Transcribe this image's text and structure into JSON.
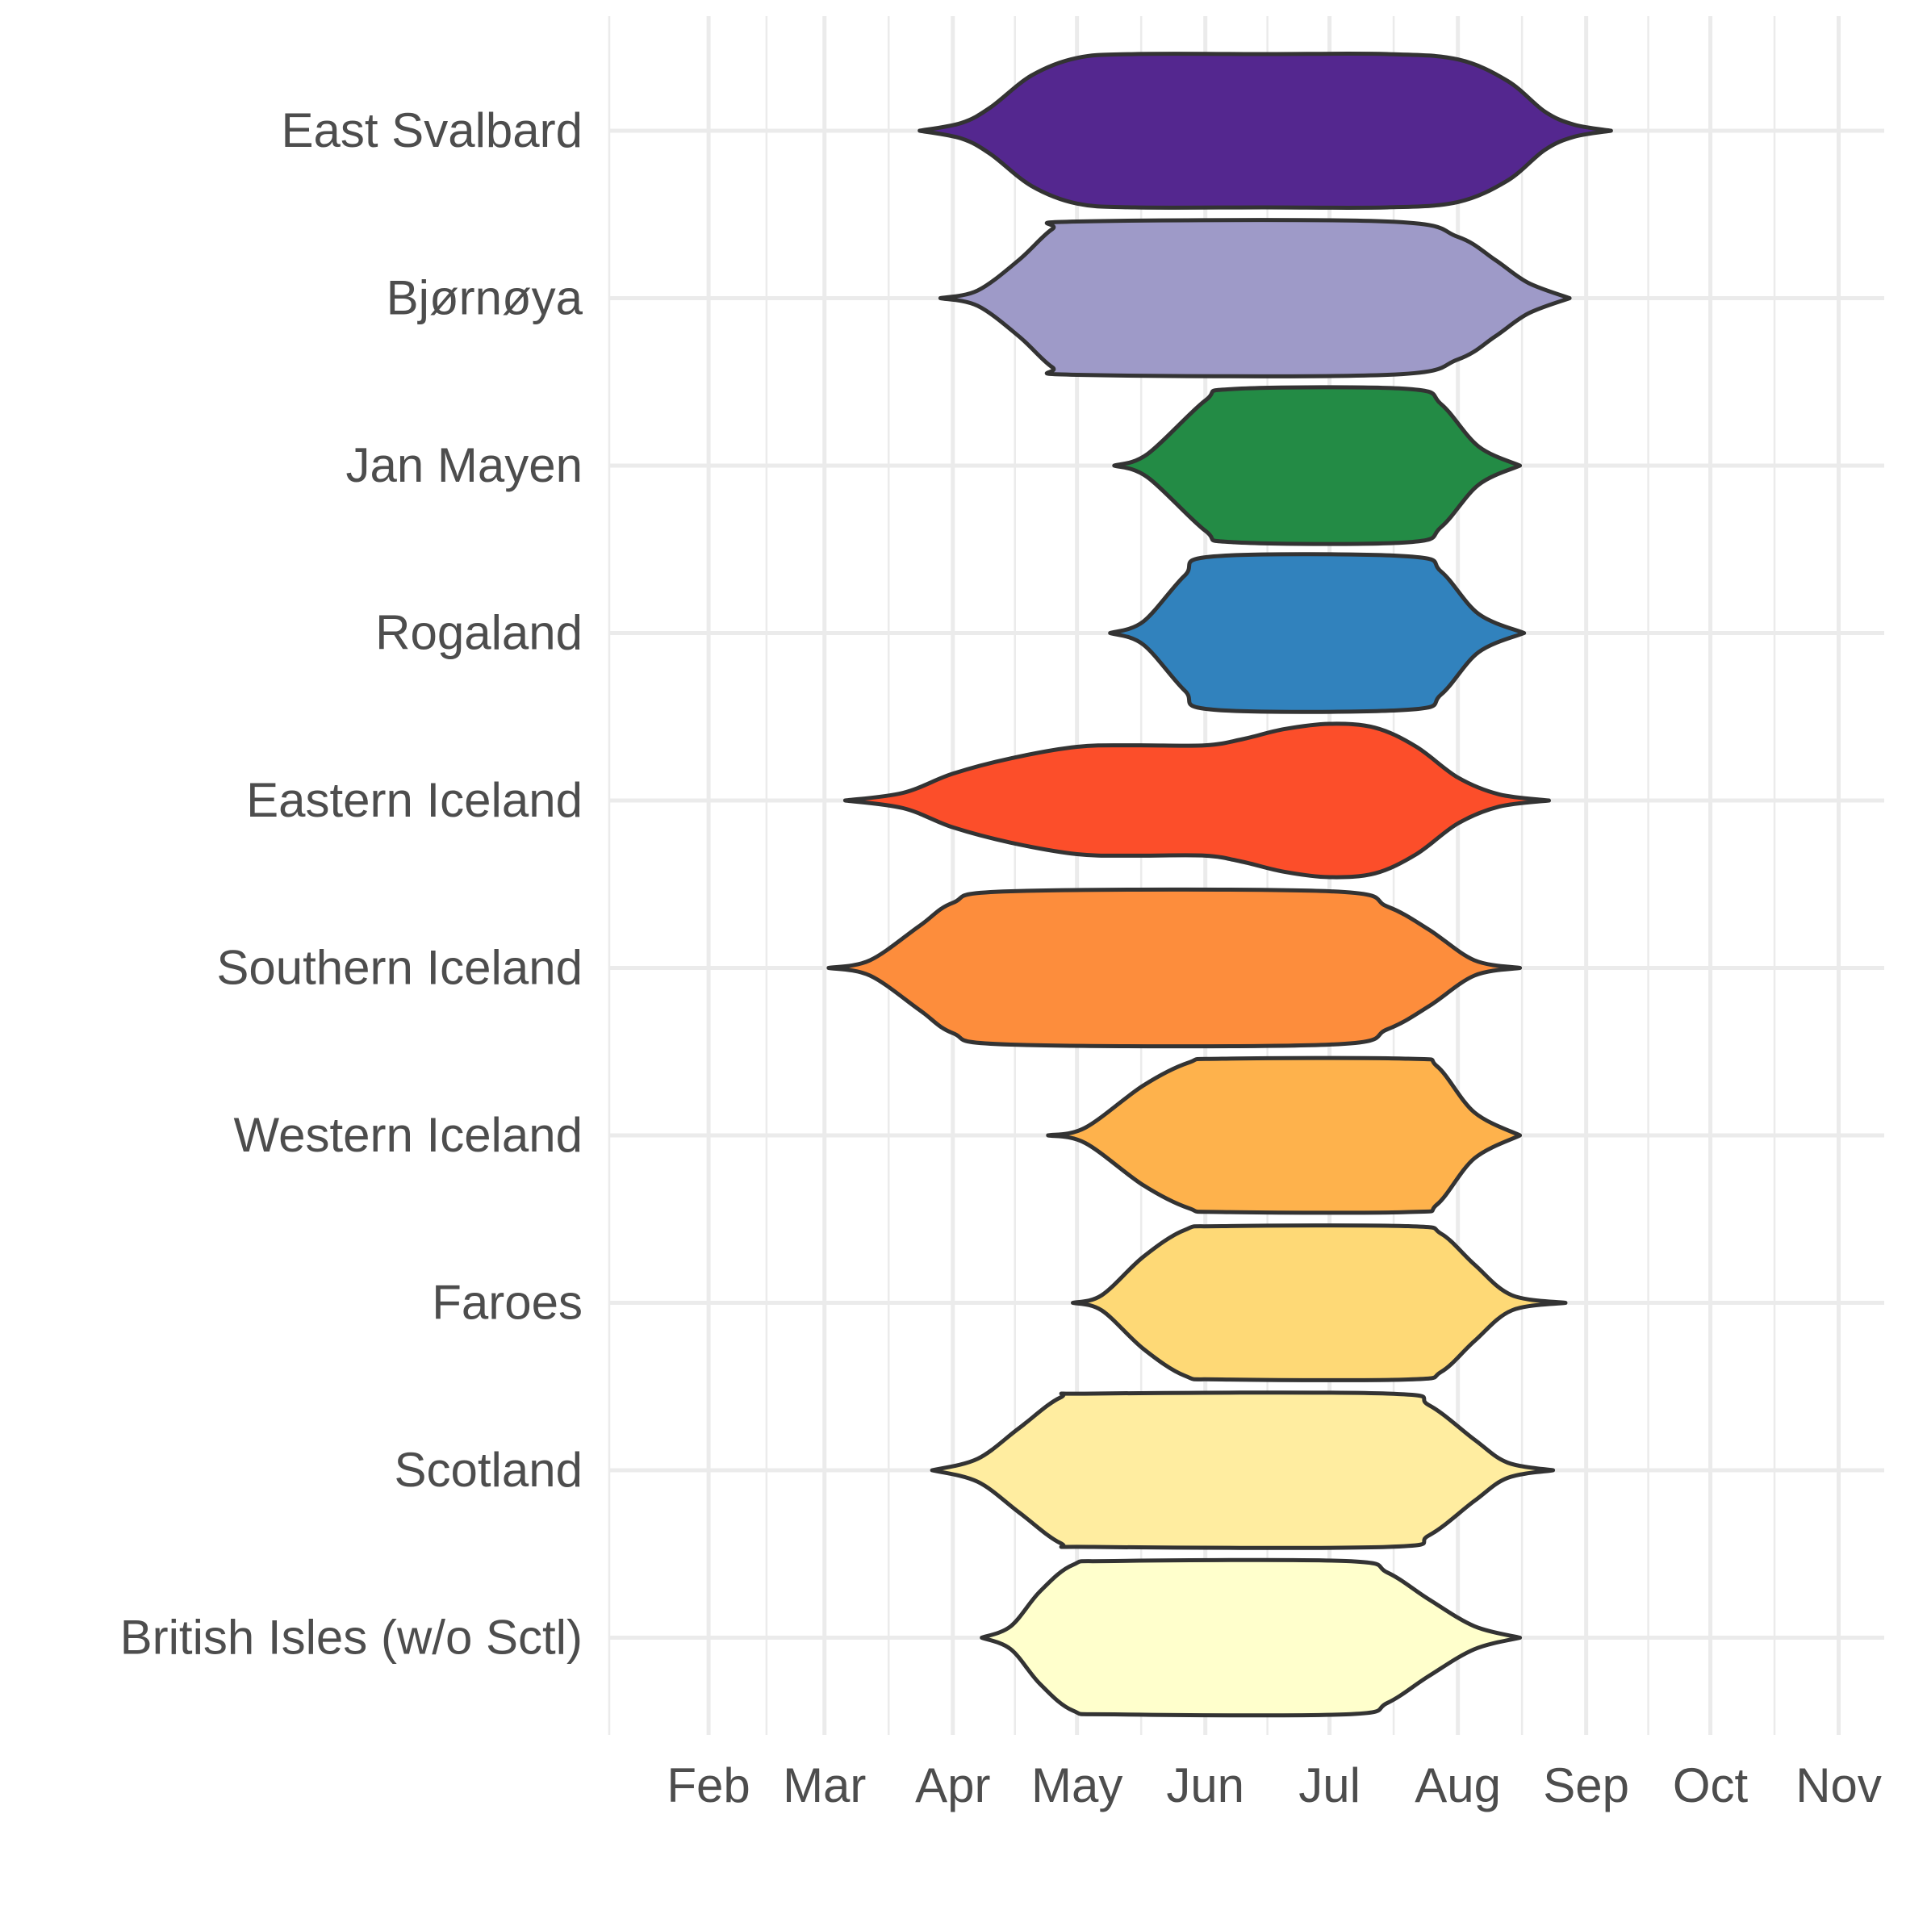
{
  "chart_data": {
    "type": "violin",
    "title": "",
    "xlabel": "",
    "ylabel": "",
    "orientation": "horizontal",
    "x_unit": "month",
    "xlim": [
      "2021-01-08",
      "2021-11-12"
    ],
    "x_ticks": [
      {
        "label": "Feb",
        "date": "2021-02-01"
      },
      {
        "label": "Mar",
        "date": "2021-03-01"
      },
      {
        "label": "Apr",
        "date": "2021-04-01"
      },
      {
        "label": "May",
        "date": "2021-05-01"
      },
      {
        "label": "Jun",
        "date": "2021-06-01"
      },
      {
        "label": "Jul",
        "date": "2021-07-01"
      },
      {
        "label": "Aug",
        "date": "2021-08-01"
      },
      {
        "label": "Sep",
        "date": "2021-09-01"
      },
      {
        "label": "Oct",
        "date": "2021-10-01"
      },
      {
        "label": "Nov",
        "date": "2021-11-01"
      }
    ],
    "grid": true,
    "legend": "none",
    "categories": [
      "East Svalbard",
      "Bjørnøya",
      "Jan Mayen",
      "Rogaland",
      "Eastern Iceland",
      "Southern Iceland",
      "Western Iceland",
      "Faroes",
      "Scotland",
      "British Isles (w/o Sctl)"
    ],
    "series": [
      {
        "category": "East Svalbard",
        "color": "#54278f",
        "density": [
          [
            "2021-03-24",
            0.0
          ],
          [
            "2021-04-03",
            0.1
          ],
          [
            "2021-04-10",
            0.3
          ],
          [
            "2021-04-20",
            0.72
          ],
          [
            "2021-05-01",
            0.95
          ],
          [
            "2021-05-15",
            1.0
          ],
          [
            "2021-06-15",
            1.0
          ],
          [
            "2021-07-15",
            1.0
          ],
          [
            "2021-08-01",
            0.93
          ],
          [
            "2021-08-13",
            0.65
          ],
          [
            "2021-08-22",
            0.25
          ],
          [
            "2021-08-29",
            0.08
          ],
          [
            "2021-09-07",
            0.0
          ]
        ]
      },
      {
        "category": "Bjørnøya",
        "color": "#9e9ac8",
        "density": [
          [
            "2021-03-29",
            0.0
          ],
          [
            "2021-04-07",
            0.1
          ],
          [
            "2021-04-17",
            0.5
          ],
          [
            "2021-04-25",
            0.9
          ],
          [
            "2021-05-01",
            1.0
          ],
          [
            "2021-07-15",
            1.0
          ],
          [
            "2021-08-01",
            0.8
          ],
          [
            "2021-08-10",
            0.5
          ],
          [
            "2021-08-18",
            0.2
          ],
          [
            "2021-08-28",
            0.0
          ]
        ]
      },
      {
        "category": "Jan Mayen",
        "color": "#238b45",
        "density": [
          [
            "2021-05-10",
            0.0
          ],
          [
            "2021-05-18",
            0.15
          ],
          [
            "2021-06-01",
            0.85
          ],
          [
            "2021-06-08",
            1.0
          ],
          [
            "2021-07-20",
            1.0
          ],
          [
            "2021-07-28",
            0.8
          ],
          [
            "2021-08-06",
            0.25
          ],
          [
            "2021-08-16",
            0.0
          ]
        ]
      },
      {
        "category": "Rogaland",
        "color": "#3182bd",
        "density": [
          [
            "2021-05-09",
            0.0
          ],
          [
            "2021-05-17",
            0.15
          ],
          [
            "2021-05-27",
            0.75
          ],
          [
            "2021-06-03",
            1.0
          ],
          [
            "2021-07-20",
            1.0
          ],
          [
            "2021-07-28",
            0.8
          ],
          [
            "2021-08-06",
            0.25
          ],
          [
            "2021-08-17",
            0.0
          ]
        ]
      },
      {
        "category": "Eastern Iceland",
        "color": "#fc4e2a",
        "density": [
          [
            "2021-03-06",
            0.0
          ],
          [
            "2021-03-20",
            0.1
          ],
          [
            "2021-04-01",
            0.35
          ],
          [
            "2021-04-15",
            0.55
          ],
          [
            "2021-05-01",
            0.7
          ],
          [
            "2021-05-15",
            0.72
          ],
          [
            "2021-06-01",
            0.72
          ],
          [
            "2021-06-10",
            0.8
          ],
          [
            "2021-06-20",
            0.93
          ],
          [
            "2021-07-01",
            1.0
          ],
          [
            "2021-07-12",
            0.95
          ],
          [
            "2021-07-22",
            0.7
          ],
          [
            "2021-08-01",
            0.3
          ],
          [
            "2021-08-11",
            0.08
          ],
          [
            "2021-08-23",
            0.0
          ]
        ]
      },
      {
        "category": "Southern Iceland",
        "color": "#fd8d3c",
        "density": [
          [
            "2021-03-02",
            0.0
          ],
          [
            "2021-03-12",
            0.1
          ],
          [
            "2021-03-24",
            0.55
          ],
          [
            "2021-04-01",
            0.85
          ],
          [
            "2021-04-15",
            1.0
          ],
          [
            "2021-07-01",
            1.0
          ],
          [
            "2021-07-15",
            0.8
          ],
          [
            "2021-07-25",
            0.5
          ],
          [
            "2021-08-05",
            0.1
          ],
          [
            "2021-08-16",
            0.0
          ]
        ]
      },
      {
        "category": "Western Iceland",
        "color": "#feb24c",
        "density": [
          [
            "2021-04-24",
            0.0
          ],
          [
            "2021-05-03",
            0.1
          ],
          [
            "2021-05-17",
            0.65
          ],
          [
            "2021-05-28",
            0.95
          ],
          [
            "2021-06-05",
            1.0
          ],
          [
            "2021-07-20",
            1.0
          ],
          [
            "2021-07-27",
            0.9
          ],
          [
            "2021-08-05",
            0.3
          ],
          [
            "2021-08-16",
            0.0
          ]
        ]
      },
      {
        "category": "Faroes",
        "color": "#fed976",
        "density": [
          [
            "2021-04-30",
            0.0
          ],
          [
            "2021-05-07",
            0.1
          ],
          [
            "2021-05-17",
            0.6
          ],
          [
            "2021-05-27",
            0.95
          ],
          [
            "2021-06-05",
            1.0
          ],
          [
            "2021-07-20",
            1.0
          ],
          [
            "2021-07-28",
            0.9
          ],
          [
            "2021-08-05",
            0.5
          ],
          [
            "2021-08-14",
            0.1
          ],
          [
            "2021-08-27",
            0.0
          ]
        ]
      },
      {
        "category": "Scotland",
        "color": "#ffeda0",
        "density": [
          [
            "2021-03-27",
            0.0
          ],
          [
            "2021-04-07",
            0.15
          ],
          [
            "2021-04-17",
            0.55
          ],
          [
            "2021-04-27",
            0.95
          ],
          [
            "2021-05-05",
            1.0
          ],
          [
            "2021-07-15",
            1.0
          ],
          [
            "2021-07-25",
            0.85
          ],
          [
            "2021-08-05",
            0.4
          ],
          [
            "2021-08-13",
            0.1
          ],
          [
            "2021-08-24",
            0.0
          ]
        ]
      },
      {
        "category": "British Isles (w/o Sctl)",
        "color": "#ffffcc",
        "density": [
          [
            "2021-04-08",
            0.0
          ],
          [
            "2021-04-15",
            0.15
          ],
          [
            "2021-04-22",
            0.6
          ],
          [
            "2021-04-30",
            0.95
          ],
          [
            "2021-05-10",
            1.0
          ],
          [
            "2021-07-05",
            1.0
          ],
          [
            "2021-07-15",
            0.85
          ],
          [
            "2021-07-25",
            0.5
          ],
          [
            "2021-08-05",
            0.15
          ],
          [
            "2021-08-16",
            0.0
          ]
        ]
      }
    ]
  }
}
